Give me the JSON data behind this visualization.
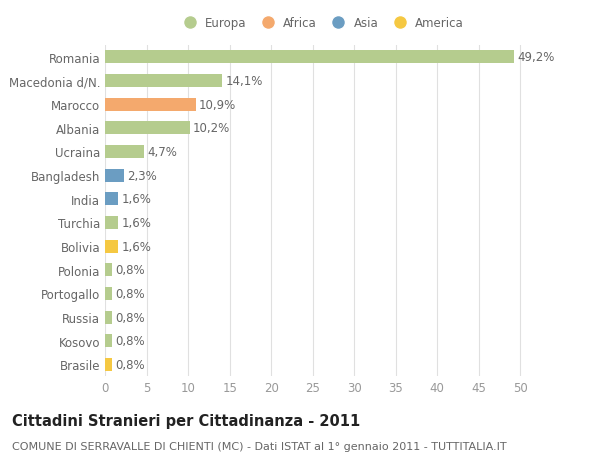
{
  "countries": [
    "Romania",
    "Macedonia d/N.",
    "Marocco",
    "Albania",
    "Ucraina",
    "Bangladesh",
    "India",
    "Turchia",
    "Bolivia",
    "Polonia",
    "Portogallo",
    "Russia",
    "Kosovo",
    "Brasile"
  ],
  "values": [
    49.2,
    14.1,
    10.9,
    10.2,
    4.7,
    2.3,
    1.6,
    1.6,
    1.6,
    0.8,
    0.8,
    0.8,
    0.8,
    0.8
  ],
  "labels": [
    "49,2%",
    "14,1%",
    "10,9%",
    "10,2%",
    "4,7%",
    "2,3%",
    "1,6%",
    "1,6%",
    "1,6%",
    "0,8%",
    "0,8%",
    "0,8%",
    "0,8%",
    "0,8%"
  ],
  "colors": [
    "#b5cc8e",
    "#b5cc8e",
    "#f4a96d",
    "#b5cc8e",
    "#b5cc8e",
    "#6b9dc2",
    "#6b9dc2",
    "#b5cc8e",
    "#f5c842",
    "#b5cc8e",
    "#b5cc8e",
    "#b5cc8e",
    "#b5cc8e",
    "#f5c842"
  ],
  "legend_labels": [
    "Europa",
    "Africa",
    "Asia",
    "America"
  ],
  "legend_colors": [
    "#b5cc8e",
    "#f4a96d",
    "#6b9dc2",
    "#f5c842"
  ],
  "title": "Cittadini Stranieri per Cittadinanza - 2011",
  "subtitle": "COMUNE DI SERRAVALLE DI CHIENTI (MC) - Dati ISTAT al 1° gennaio 2011 - TUTTITALIA.IT",
  "xlim": [
    0,
    52
  ],
  "xticks": [
    0,
    5,
    10,
    15,
    20,
    25,
    30,
    35,
    40,
    45,
    50
  ],
  "background_color": "#ffffff",
  "grid_color": "#e0e0e0",
  "bar_height": 0.55,
  "label_fontsize": 8.5,
  "tick_fontsize": 8.5,
  "title_fontsize": 10.5,
  "subtitle_fontsize": 8.0
}
